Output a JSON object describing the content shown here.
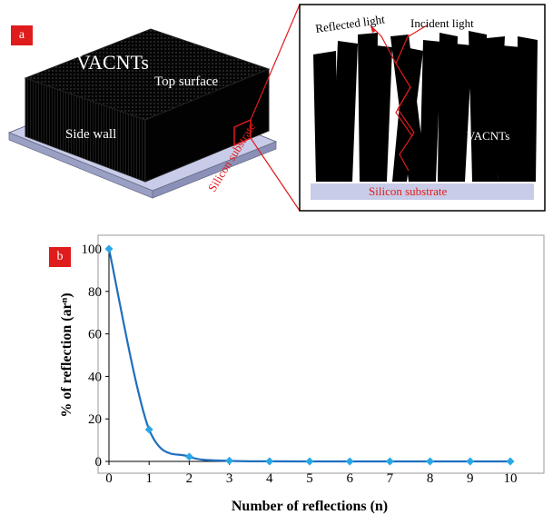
{
  "panel_a": {
    "label": "a",
    "block_title": "VACNTs",
    "top_surface_label": "Top surface",
    "side_wall_label": "Side wall",
    "substrate_label": "Silicon substrate",
    "zoom": {
      "reflected_light_label": "Reflected light",
      "incident_light_label": "Incident light",
      "vacnts_label": "VACNTs",
      "substrate_label": "Silicon substrate"
    }
  },
  "panel_b": {
    "label": "b"
  },
  "colors": {
    "label_red": "#e01b1b",
    "curve_blue": "#1f6fbf",
    "marker_blue": "#2aa8e6",
    "substrate": "#c8cce8"
  },
  "chart_data": {
    "type": "line",
    "x": [
      0,
      1,
      2,
      3,
      4,
      5,
      6,
      7,
      8,
      9,
      10
    ],
    "series": [
      {
        "values": [
          100,
          15,
          2.2,
          0.3,
          0.05,
          0,
          0,
          0,
          0,
          0,
          0
        ]
      }
    ],
    "xlabel": "Number of reflections (n)",
    "ylabel": "% of  reflection (arⁿ)",
    "xlim": [
      0,
      10
    ],
    "ylim": [
      0,
      100
    ],
    "xticks": [
      "0",
      "1",
      "2",
      "3",
      "4",
      "5",
      "6",
      "7",
      "8",
      "9",
      "10"
    ],
    "yticks": [
      "0",
      "20",
      "40",
      "60",
      "80",
      "100"
    ],
    "grid": false,
    "smooth": true
  }
}
